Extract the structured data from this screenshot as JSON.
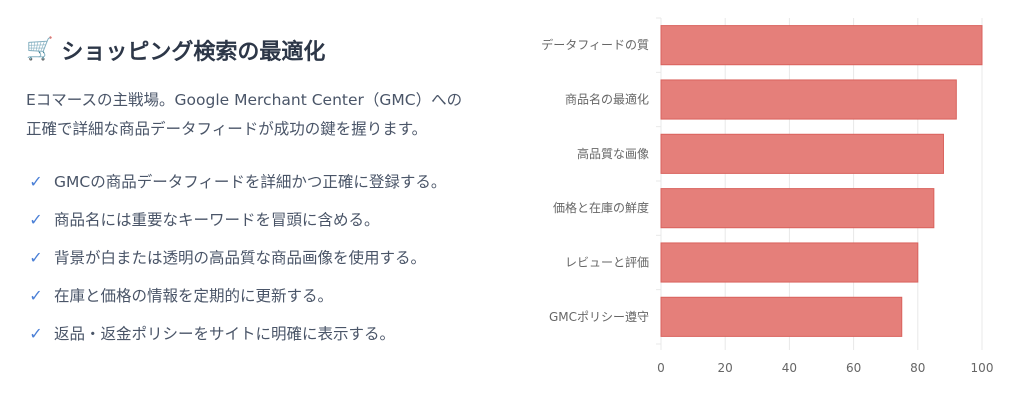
{
  "header": {
    "icon": "shopping-cart-icon",
    "icon_glyph": "🛒",
    "title": "ショッピング検索の最適化"
  },
  "intro": {
    "line1": "Eコマースの主戦場。Google Merchant Center（GMC）への",
    "line2": "正確で詳細な商品データフィードが成功の鍵を握ります。"
  },
  "checklist": {
    "icon": "checkmark-icon",
    "glyph": "✓",
    "items": [
      "GMCの商品データフィードを詳細かつ正確に登録する。",
      "商品名には重要なキーワードを冒頭に含める。",
      "背景が白または透明の高品質な商品画像を使用する。",
      "在庫と価格の情報を定期的に更新する。",
      "返品・返金ポリシーをサイトに明確に表示する。"
    ]
  },
  "colors": {
    "bar_fill": "#e57f7a",
    "bar_stroke": "#d9625d",
    "check": "#4a7fd6",
    "grid": "#e8e8e8",
    "axis_text": "#666666"
  },
  "chart_data": {
    "type": "bar",
    "orientation": "horizontal",
    "categories": [
      "データフィードの質",
      "商品名の最適化",
      "高品質な画像",
      "価格と在庫の鮮度",
      "レビューと評価",
      "GMCポリシー遵守"
    ],
    "values": [
      100,
      92,
      88,
      85,
      80,
      75
    ],
    "xlim": [
      0,
      100
    ],
    "xticks": [
      0,
      20,
      40,
      60,
      80,
      100
    ],
    "grid": true,
    "legend": false
  }
}
